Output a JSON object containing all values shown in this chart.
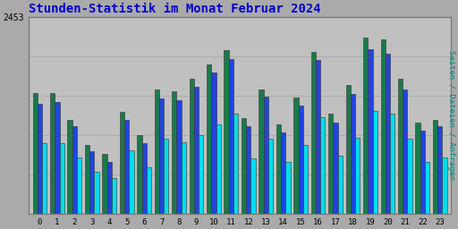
{
  "title": "Stunden-Statistik im Monat Februar 2024",
  "ylabel_right": "Seiten / Dateien / Anfragen",
  "hours": [
    0,
    1,
    2,
    3,
    4,
    5,
    6,
    7,
    8,
    9,
    10,
    11,
    12,
    13,
    14,
    15,
    16,
    17,
    18,
    19,
    20,
    21,
    22,
    23
  ],
  "seiten": [
    580,
    580,
    450,
    330,
    290,
    490,
    380,
    600,
    590,
    650,
    720,
    790,
    460,
    600,
    430,
    560,
    780,
    480,
    620,
    850,
    840,
    650,
    440,
    450
  ],
  "dateien": [
    530,
    540,
    420,
    300,
    250,
    450,
    340,
    555,
    545,
    610,
    680,
    745,
    420,
    565,
    390,
    520,
    740,
    440,
    575,
    795,
    770,
    600,
    400,
    420
  ],
  "anfragen": [
    340,
    340,
    270,
    200,
    170,
    305,
    225,
    360,
    345,
    380,
    430,
    480,
    265,
    360,
    250,
    330,
    465,
    280,
    365,
    495,
    480,
    360,
    250,
    270
  ],
  "bar_width": 0.27,
  "colors": {
    "seiten": "#1a7a4a",
    "dateien": "#2244dd",
    "anfragen": "#00ddee"
  },
  "bg_color": "#aaaaaa",
  "plot_bg_color": "#c0c0c0",
  "title_color": "#0000cc",
  "title_fontsize": 10,
  "ylabel_color": "#008888",
  "figsize": [
    5.12,
    2.56
  ],
  "dpi": 100,
  "ylim": [
    0,
    950
  ],
  "grid_ticks": [
    0,
    190,
    380,
    570,
    760,
    950
  ],
  "ytick_labels": [
    "",
    "",
    "",
    "",
    "",
    "2453"
  ]
}
